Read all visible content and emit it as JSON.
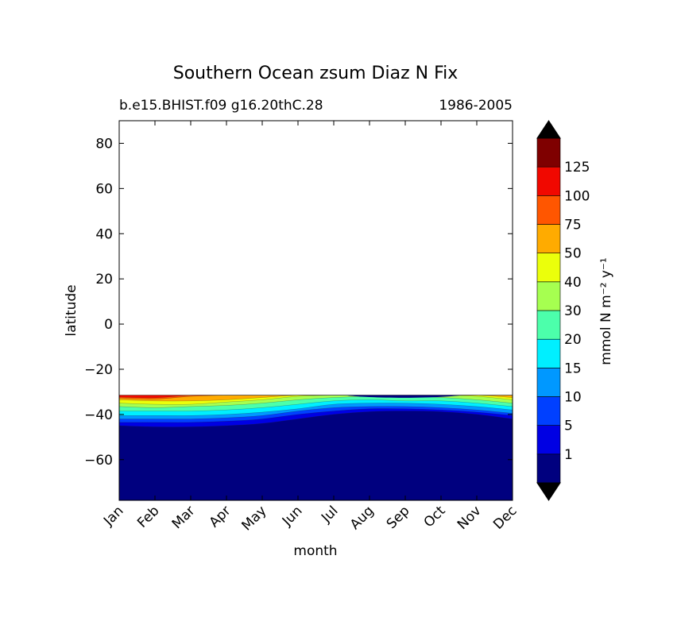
{
  "chart_data": {
    "type": "contour",
    "title": "Southern Ocean zsum Diaz N Fix",
    "subtitle_left": "b.e15.BHIST.f09 g16.20thC.28",
    "subtitle_right": "1986-2005",
    "xlabel": "month",
    "ylabel": "latitude",
    "x_categories": [
      "Jan",
      "Feb",
      "Mar",
      "Apr",
      "May",
      "Jun",
      "Jul",
      "Aug",
      "Sep",
      "Oct",
      "Nov",
      "Dec"
    ],
    "ylim": [
      -78,
      90
    ],
    "y_ticks": [
      80,
      60,
      40,
      20,
      0,
      -20,
      -40,
      -60
    ],
    "data_lat_bounds": [
      -78,
      -31.5
    ],
    "colorbar": {
      "label": "mmol N m⁻² y⁻¹",
      "levels": [
        0,
        1,
        5,
        10,
        15,
        20,
        30,
        40,
        50,
        75,
        100,
        125,
        150
      ],
      "tick_labels": [
        "1",
        "5",
        "10",
        "15",
        "20",
        "30",
        "40",
        "50",
        "75",
        "100",
        "125"
      ],
      "colors": [
        "#00007f",
        "#0000e3",
        "#0040ff",
        "#0098ff",
        "#00efff",
        "#4cffab",
        "#a6ff50",
        "#ebff0b",
        "#ffab00",
        "#ff5600",
        "#f10800",
        "#7f0000"
      ],
      "under_color": "#000000",
      "over_color": "#000000",
      "extend": "both"
    },
    "contour_bands": [
      {
        "level": 1,
        "lat_edge_by_month": [
          -45.0,
          -45.5,
          -45.5,
          -45.0,
          -44.0,
          -42.0,
          -40.0,
          -38.8,
          -38.5,
          -38.8,
          -40.0,
          -42.0
        ]
      },
      {
        "level": 5,
        "lat_edge_by_month": [
          -43.5,
          -43.5,
          -43.5,
          -43.0,
          -42.0,
          -40.0,
          -38.5,
          -37.5,
          -37.5,
          -38.0,
          -39.0,
          -40.5
        ]
      },
      {
        "level": 10,
        "lat_edge_by_month": [
          -42.0,
          -42.0,
          -42.0,
          -41.5,
          -40.5,
          -38.5,
          -37.0,
          -36.5,
          -36.5,
          -37.0,
          -38.0,
          -39.5
        ]
      },
      {
        "level": 15,
        "lat_edge_by_month": [
          -40.5,
          -40.5,
          -40.5,
          -40.0,
          -39.0,
          -37.5,
          -35.5,
          -35.0,
          -35.0,
          -35.5,
          -36.5,
          -38.0
        ]
      },
      {
        "level": 20,
        "lat_edge_by_month": [
          -38.5,
          -38.5,
          -38.5,
          -38.0,
          -37.0,
          -35.5,
          -34.0,
          -33.5,
          -34.0,
          -34.0,
          -35.0,
          -36.5
        ]
      },
      {
        "level": 30,
        "lat_edge_by_month": [
          -36.5,
          -37.0,
          -36.5,
          -36.0,
          -35.0,
          -33.5,
          -32.5,
          -32.0,
          -32.0,
          -32.5,
          -33.5,
          -35.0
        ]
      },
      {
        "level": 40,
        "lat_edge_by_month": [
          -35.0,
          -35.5,
          -35.5,
          -34.5,
          -33.5,
          -32.0,
          -31.5,
          -31.5,
          -31.5,
          -31.5,
          -32.0,
          -33.5
        ]
      },
      {
        "level": 50,
        "lat_edge_by_month": [
          -33.5,
          -34.0,
          -34.0,
          -33.5,
          -32.5,
          -31.5,
          -31.5,
          -31.5,
          -31.5,
          -31.5,
          -31.5,
          -32.5
        ]
      },
      {
        "level": 75,
        "lat_edge_by_month": [
          -32.8,
          -33.2,
          -32.0,
          -31.5,
          -31.5,
          -31.5,
          -31.5,
          -31.5,
          -31.5,
          -31.5,
          -31.5,
          -31.5
        ]
      },
      {
        "level": 100,
        "lat_edge_by_month": [
          -32.3,
          -32.6,
          -31.5,
          -31.5,
          -31.5,
          -31.5,
          -31.5,
          -31.5,
          -31.5,
          -31.5,
          -31.5,
          -31.5
        ]
      }
    ]
  }
}
